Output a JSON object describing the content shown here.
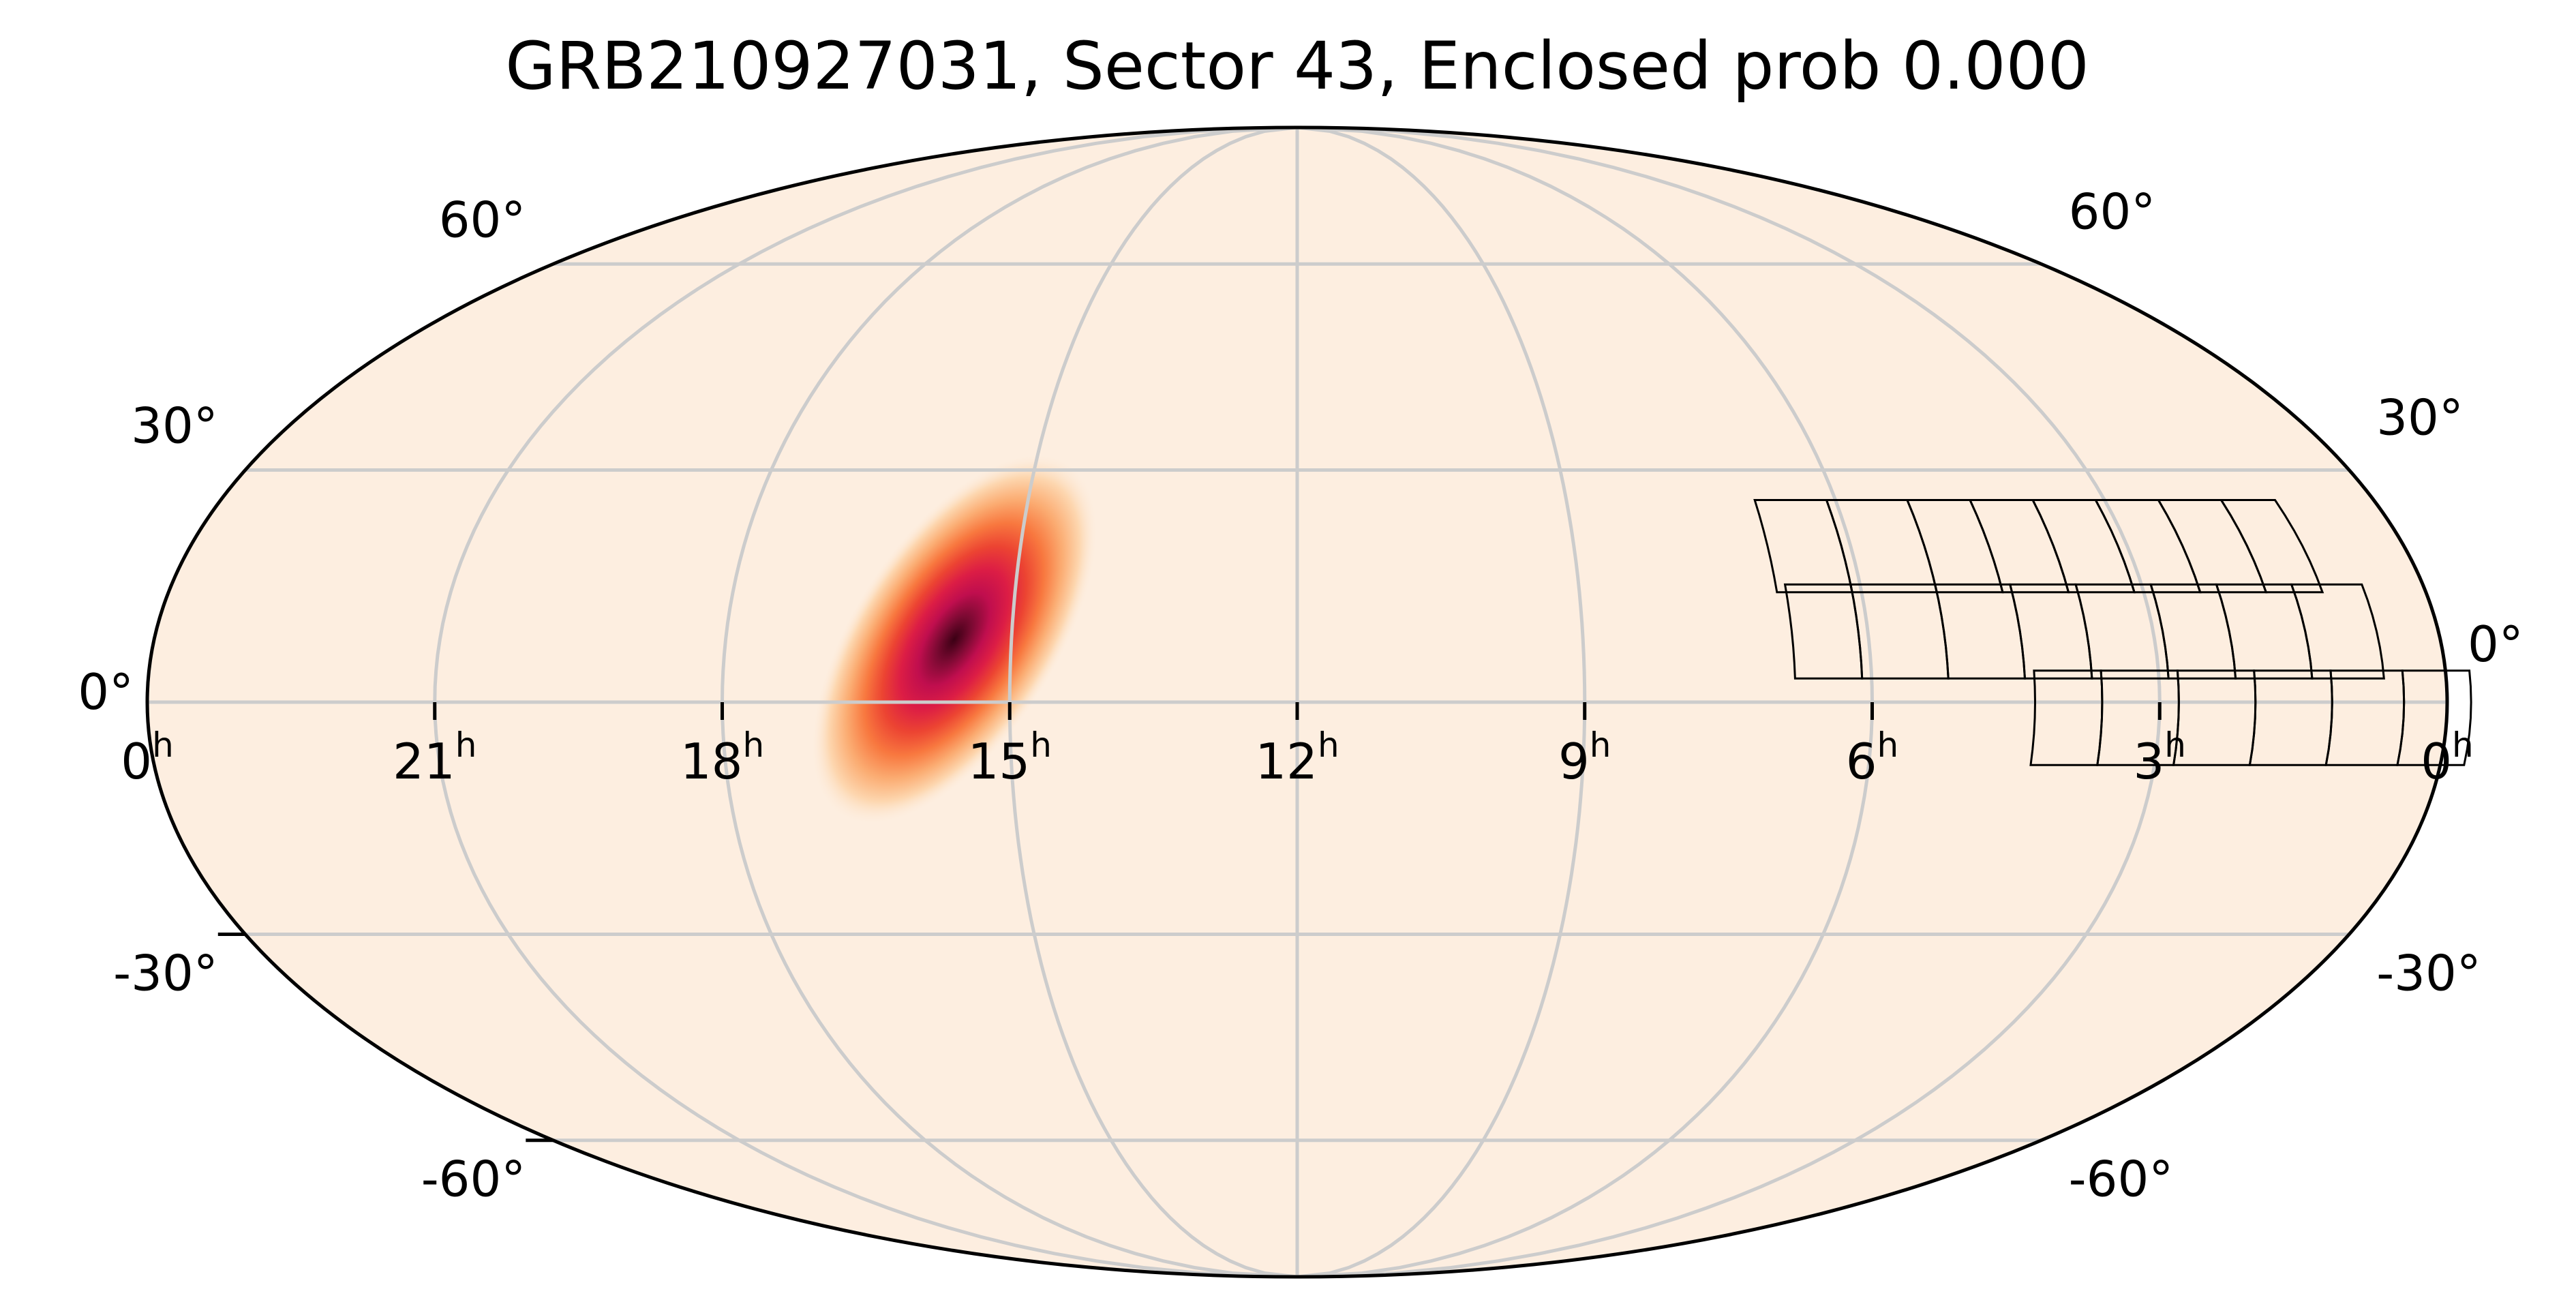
{
  "chart_data": {
    "type": "heatmap",
    "projection": "mollweide",
    "title": "GRB210927031, Sector 43, Enclosed prob 0.000",
    "ra_tick_labels": [
      {
        "ra_h": 24,
        "label": "0",
        "unit": "h"
      },
      {
        "ra_h": 21,
        "label": "21",
        "unit": "h"
      },
      {
        "ra_h": 18,
        "label": "18",
        "unit": "h"
      },
      {
        "ra_h": 15,
        "label": "15",
        "unit": "h"
      },
      {
        "ra_h": 12,
        "label": "12",
        "unit": "h"
      },
      {
        "ra_h": 9,
        "label": "9",
        "unit": "h"
      },
      {
        "ra_h": 6,
        "label": "6",
        "unit": "h"
      },
      {
        "ra_h": 3,
        "label": "3",
        "unit": "h"
      },
      {
        "ra_h": 0,
        "label": "0",
        "unit": "h"
      }
    ],
    "dec_tick_labels": [
      {
        "dec_deg": 60,
        "label": "60°"
      },
      {
        "dec_deg": 30,
        "label": "30°"
      },
      {
        "dec_deg": 0,
        "label": "0°"
      },
      {
        "dec_deg": -30,
        "label": "-30°"
      },
      {
        "dec_deg": -60,
        "label": "-60°"
      }
    ],
    "graticule": {
      "ra_step_h": 3,
      "dec_step_deg": 30
    },
    "probability_blob": {
      "center_ra_h": 15.6,
      "center_dec_deg": 8,
      "peak": 1.0
    },
    "colormap": [
      "#fdeee0",
      "#fdd7b0",
      "#fbac72",
      "#f8783f",
      "#ec4432",
      "#dc1d45",
      "#c00e4e",
      "#7d0a33",
      "#3b0014"
    ],
    "background_color": "#fdeee0",
    "sector_footprint": {
      "label": "Sector 43",
      "rows": [
        {
          "dec_deg": [
            14,
            26
          ],
          "ra_h": [
            [
              6.9,
              6.1
            ],
            [
              6.1,
              5.2
            ],
            [
              5.2,
              4.5
            ],
            [
              4.5,
              3.8
            ],
            [
              3.8,
              3.1
            ],
            [
              3.1,
              2.4
            ],
            [
              2.4,
              1.7
            ],
            [
              1.7,
              1.1
            ]
          ]
        },
        {
          "dec_deg": [
            3,
            15
          ],
          "ra_h": [
            [
              6.8,
              6.1
            ],
            [
              6.1,
              5.2
            ],
            [
              5.2,
              4.4
            ],
            [
              4.4,
              3.7
            ],
            [
              3.7,
              2.9
            ],
            [
              2.9,
              2.2
            ],
            [
              2.2,
              1.4
            ],
            [
              1.4,
              0.65
            ]
          ]
        },
        {
          "dec_deg": [
            -8,
            4
          ],
          "ra_h": [
            [
              4.3,
              3.6
            ],
            [
              3.6,
              2.8
            ],
            [
              2.8,
              2.0
            ],
            [
              2.0,
              1.2
            ],
            [
              1.2,
              0.45
            ],
            [
              0.45,
              -0.25
            ]
          ]
        }
      ]
    }
  }
}
